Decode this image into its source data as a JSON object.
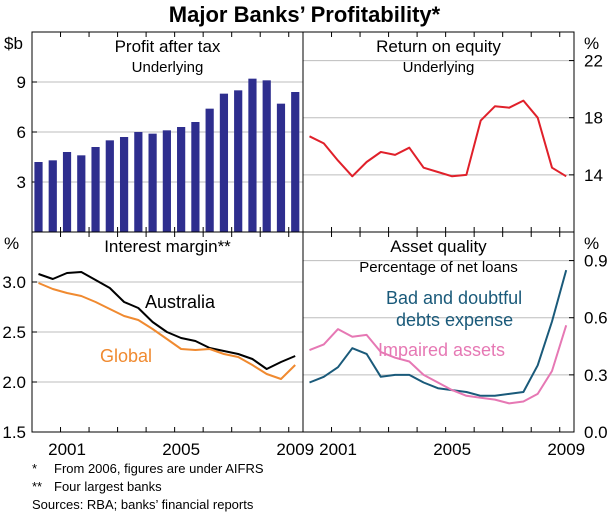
{
  "title": "Major Banks’ Profitability*",
  "colors": {
    "bar": "#2e2e8e",
    "roe": "#e0202a",
    "australia": "#000000",
    "global": "#f08a30",
    "bad_debts": "#1a5a7a",
    "impaired": "#e678b4"
  },
  "chart_data": [
    {
      "type": "bar",
      "title": "Profit after tax",
      "subtitle": "Underlying",
      "unit": "$b",
      "ylim": [
        0,
        12
      ],
      "yticks": [
        "3",
        "6",
        "9"
      ],
      "x": [
        2000.0,
        2000.5,
        2001.0,
        2001.5,
        2002.0,
        2002.5,
        2003.0,
        2003.5,
        2004.0,
        2004.5,
        2005.0,
        2005.5,
        2006.0,
        2006.5,
        2007.0,
        2007.5,
        2008.0,
        2008.5,
        2009.0
      ],
      "values": [
        4.2,
        4.3,
        4.8,
        4.6,
        5.1,
        5.5,
        5.7,
        6.0,
        5.9,
        6.1,
        6.3,
        6.6,
        7.4,
        8.3,
        8.5,
        9.2,
        9.1,
        7.7,
        8.4
      ]
    },
    {
      "type": "line",
      "title": "Return on equity",
      "subtitle": "Underlying",
      "unit": "%",
      "ylim": [
        10,
        24
      ],
      "yticks": [
        "14",
        "18",
        "22"
      ],
      "series": [
        {
          "name": "Return on equity",
          "x": [
            2000.0,
            2000.5,
            2001.0,
            2001.5,
            2002.0,
            2002.5,
            2003.0,
            2003.5,
            2004.0,
            2004.5,
            2005.0,
            2005.5,
            2006.0,
            2006.5,
            2007.0,
            2007.5,
            2008.0,
            2008.5,
            2009.0
          ],
          "values": [
            16.7,
            16.2,
            15.0,
            13.9,
            14.9,
            15.6,
            15.4,
            15.9,
            14.5,
            14.2,
            13.9,
            14.0,
            17.8,
            18.8,
            18.7,
            19.2,
            18.0,
            14.5,
            13.9
          ]
        }
      ]
    },
    {
      "type": "line",
      "title": "Interest margin**",
      "unit": "%",
      "ylim": [
        1.5,
        3.5
      ],
      "yticks": [
        "1.5",
        "2.0",
        "2.5",
        "3.0"
      ],
      "xticks": [
        "2001",
        "2005",
        "2009"
      ],
      "series": [
        {
          "name": "Australia",
          "x": [
            2000.0,
            2000.5,
            2001.0,
            2001.5,
            2002.0,
            2002.5,
            2003.0,
            2003.5,
            2004.0,
            2004.5,
            2005.0,
            2005.5,
            2006.0,
            2006.5,
            2007.0,
            2007.5,
            2008.0,
            2008.5,
            2009.0
          ],
          "values": [
            3.08,
            3.03,
            3.09,
            3.1,
            3.02,
            2.94,
            2.8,
            2.74,
            2.6,
            2.5,
            2.44,
            2.41,
            2.34,
            2.31,
            2.28,
            2.23,
            2.13,
            2.2,
            2.26
          ]
        },
        {
          "name": "Global",
          "x": [
            2000.0,
            2000.5,
            2001.0,
            2001.5,
            2002.0,
            2002.5,
            2003.0,
            2003.5,
            2004.0,
            2004.5,
            2005.0,
            2005.5,
            2006.0,
            2006.5,
            2007.0,
            2007.5,
            2008.0,
            2008.5,
            2009.0
          ],
          "values": [
            2.99,
            2.93,
            2.89,
            2.86,
            2.8,
            2.73,
            2.66,
            2.62,
            2.53,
            2.43,
            2.33,
            2.32,
            2.33,
            2.28,
            2.25,
            2.17,
            2.08,
            2.03,
            2.17
          ]
        }
      ]
    },
    {
      "type": "line",
      "title": "Asset quality",
      "subtitle": "Percentage of net loans",
      "unit": "%",
      "ylim": [
        0.0,
        1.05
      ],
      "yticks": [
        "0.0",
        "0.3",
        "0.6",
        "0.9"
      ],
      "xticks": [
        "2001",
        "2005",
        "2009"
      ],
      "series": [
        {
          "name": "Bad and doubtful debts expense",
          "x": [
            2000.0,
            2000.5,
            2001.0,
            2001.5,
            2002.0,
            2002.5,
            2003.0,
            2003.5,
            2004.0,
            2004.5,
            2005.0,
            2005.5,
            2006.0,
            2006.5,
            2007.0,
            2007.5,
            2008.0,
            2008.5,
            2009.0
          ],
          "values": [
            0.26,
            0.29,
            0.34,
            0.44,
            0.41,
            0.29,
            0.3,
            0.3,
            0.26,
            0.23,
            0.22,
            0.21,
            0.19,
            0.19,
            0.2,
            0.21,
            0.35,
            0.58,
            0.85
          ]
        },
        {
          "name": "Impaired assets",
          "x": [
            2000.0,
            2000.5,
            2001.0,
            2001.5,
            2002.0,
            2002.5,
            2003.0,
            2003.5,
            2004.0,
            2004.5,
            2005.0,
            2005.5,
            2006.0,
            2006.5,
            2007.0,
            2007.5,
            2008.0,
            2008.5,
            2009.0
          ],
          "values": [
            0.43,
            0.46,
            0.54,
            0.5,
            0.51,
            0.42,
            0.39,
            0.37,
            0.3,
            0.26,
            0.22,
            0.19,
            0.18,
            0.17,
            0.15,
            0.16,
            0.2,
            0.32,
            0.56
          ]
        }
      ]
    }
  ],
  "labels": {
    "australia": "Australia",
    "global": "Global",
    "bad_debts_line1": "Bad and doubtful",
    "bad_debts_line2": "debts expense",
    "impaired": "Impaired assets"
  },
  "xaxis_ticks": [
    "2001",
    "2005",
    "2009"
  ],
  "notes": {
    "n1_mark": "*",
    "n1_text": "From 2006, figures are under AIFRS",
    "n2_mark": "**",
    "n2_text": "Four largest banks",
    "sources": "Sources: RBA; banks’ financial reports"
  }
}
